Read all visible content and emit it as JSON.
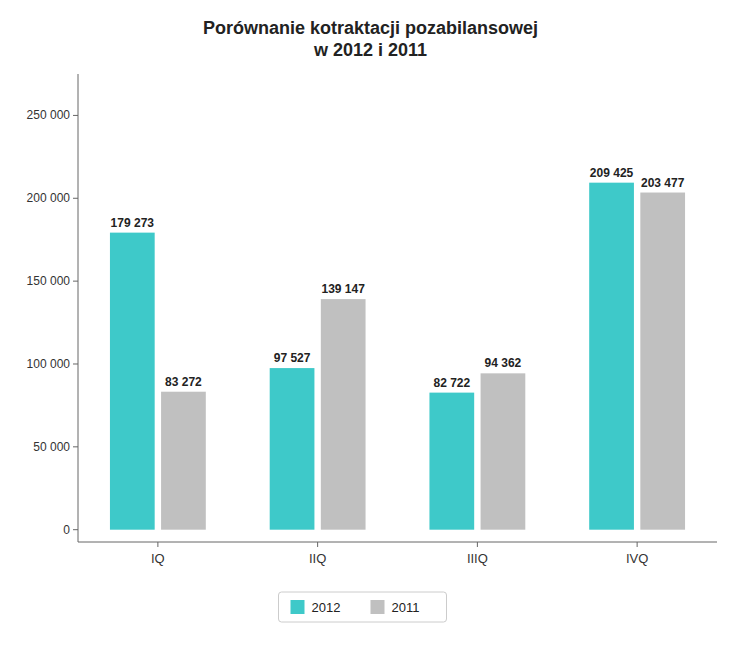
{
  "chart_data": {
    "type": "bar",
    "title": "Porównanie kotraktacji pozabilansowej\nw 2012 i 2011",
    "categories": [
      "IQ",
      "IIQ",
      "IIIQ",
      "IVQ"
    ],
    "series": [
      {
        "name": "2012",
        "color": "#3EC9C9",
        "values": [
          179273,
          97527,
          82722,
          209425
        ],
        "value_labels": [
          "179 273",
          "97 527",
          "82 722",
          "209 425"
        ]
      },
      {
        "name": "2011",
        "color": "#C0C0C0",
        "values": [
          83272,
          139147,
          94362,
          203477
        ],
        "value_labels": [
          "83 272",
          "139 147",
          "94 362",
          "203 477"
        ]
      }
    ],
    "ylim": [
      -7425,
      275000
    ],
    "yticks": [
      0,
      {
        "value": 50000,
        "label": "50 000"
      },
      {
        "value": 100000,
        "label": "100 000"
      },
      {
        "value": 150000,
        "label": "150 000"
      },
      {
        "value": 200000,
        "label": "200 000"
      },
      {
        "value": 250000,
        "label": "250 000"
      }
    ],
    "grid": false,
    "legend": "bottom",
    "data_labels": true
  }
}
